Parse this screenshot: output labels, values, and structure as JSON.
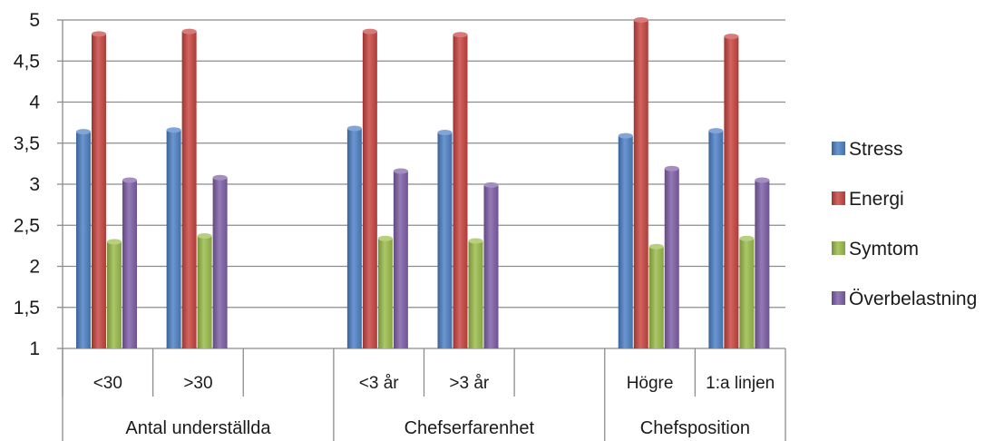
{
  "chart_data": {
    "type": "bar",
    "categories": [
      "<30",
      ">30",
      "",
      "<3 år",
      ">3 år",
      "",
      "Högre",
      "1:a linjen"
    ],
    "groups": [
      {
        "label": "Antal underställda",
        "span": [
          0,
          2
        ]
      },
      {
        "label": "Chefserfarenhet",
        "span": [
          3,
          5
        ]
      },
      {
        "label": "Chefsposition",
        "span": [
          6,
          7
        ]
      }
    ],
    "series": [
      {
        "name": "Stress",
        "color": "#4a7fc4",
        "values": [
          3.64,
          3.66,
          null,
          3.68,
          3.63,
          null,
          3.59,
          3.65
        ]
      },
      {
        "name": "Energi",
        "color": "#c7433e",
        "values": [
          4.83,
          4.86,
          null,
          4.86,
          4.82,
          null,
          5.0,
          4.8
        ]
      },
      {
        "name": "Symtom",
        "color": "#98bb48",
        "values": [
          2.3,
          2.37,
          null,
          2.34,
          2.31,
          null,
          2.24,
          2.34
        ]
      },
      {
        "name": "Överbelastning",
        "color": "#7d5da6",
        "values": [
          3.05,
          3.08,
          null,
          3.16,
          2.99,
          null,
          3.19,
          3.05
        ]
      }
    ],
    "yticks": [
      "1",
      "1,5",
      "2",
      "2,5",
      "3",
      "3,5",
      "4",
      "4,5",
      "5"
    ],
    "ylim": [
      1,
      5
    ],
    "grid": true,
    "legend": "right"
  }
}
